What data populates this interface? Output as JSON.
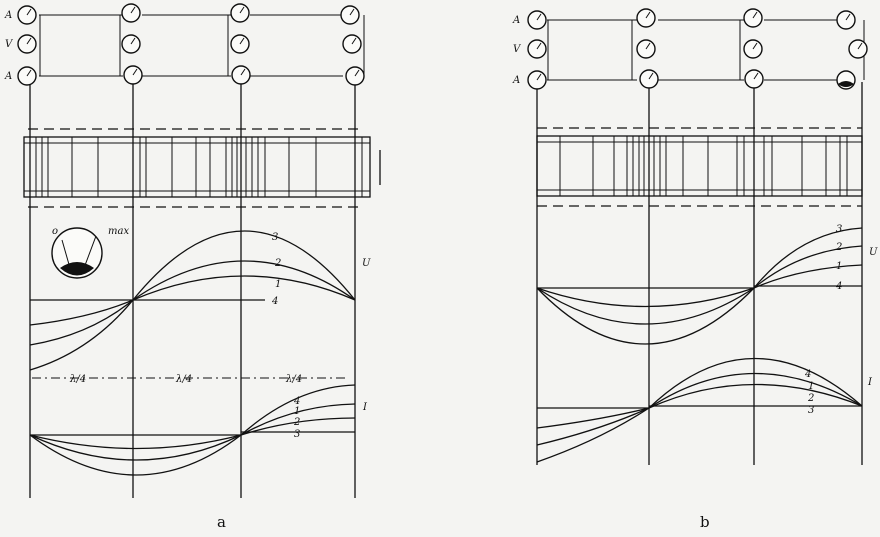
{
  "panel_a": {
    "caption": "a",
    "meter_left_labels": [
      "A",
      "V",
      "A"
    ],
    "voltage_axis_label": "U",
    "current_axis_label": "I",
    "voltage_curve_labels": [
      "3",
      "2",
      "1",
      "4"
    ],
    "current_curve_labels": [
      "4",
      "1",
      "2",
      "3"
    ],
    "quarter_wave_label": "λ/4",
    "gauge_zero": "o",
    "gauge_max": "max"
  },
  "panel_b": {
    "caption": "b",
    "meter_left_labels": [
      "A",
      "V",
      "A"
    ],
    "voltage_axis_label": "U",
    "current_axis_label": "I",
    "voltage_curve_labels": [
      "3",
      "2",
      "1",
      "4"
    ],
    "current_curve_labels": [
      "4",
      "1",
      "2",
      "3"
    ]
  }
}
